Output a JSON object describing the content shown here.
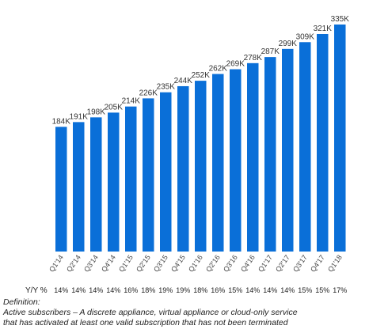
{
  "chart_data": {
    "type": "bar",
    "categories": [
      "Q1'14",
      "Q2'14",
      "Q3'14",
      "Q4'14",
      "Q1'15",
      "Q2'15",
      "Q3'15",
      "Q4'15",
      "Q1'16",
      "Q2'16",
      "Q3'16",
      "Q4'16",
      "Q1'17",
      "Q2'17",
      "Q3'17",
      "Q4'17",
      "Q1'18"
    ],
    "values": [
      184,
      191,
      198,
      205,
      214,
      226,
      235,
      244,
      252,
      262,
      269,
      278,
      287,
      299,
      309,
      321,
      335
    ],
    "value_labels": [
      "184K",
      "191K",
      "198K",
      "205K",
      "214K",
      "226K",
      "235K",
      "244K",
      "252K",
      "262K",
      "269K",
      "278K",
      "287K",
      "299K",
      "309K",
      "321K",
      "335K"
    ],
    "yoy_label": "Y/Y %",
    "yoy": [
      "14%",
      "14%",
      "14%",
      "14%",
      "16%",
      "18%",
      "19%",
      "19%",
      "18%",
      "16%",
      "15%",
      "14%",
      "14%",
      "14%",
      "15%",
      "15%",
      "17%"
    ],
    "ylim": [
      0,
      335
    ],
    "bar_color": "#0a6fd8",
    "grid": false,
    "legend": "none"
  },
  "definition": {
    "heading": "Definition:",
    "line1": "Active subscribers – A discrete appliance, virtual appliance or cloud-only service",
    "line2": "that has activated at least one valid subscription that has not been terminated"
  }
}
